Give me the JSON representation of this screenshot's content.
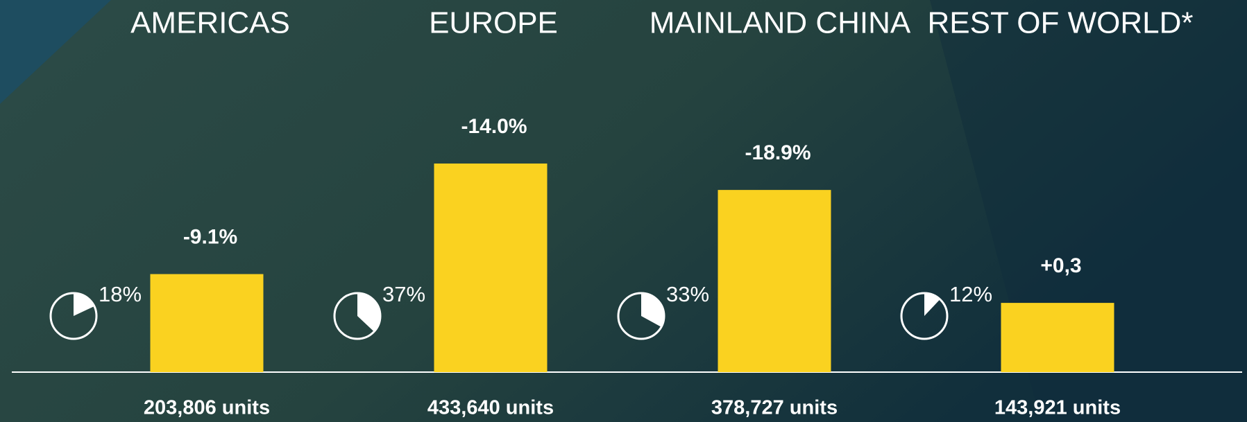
{
  "chart_data": {
    "type": "bar",
    "categories": [
      "AMERICAS",
      "EUROPE",
      "MAINLAND CHINA",
      "REST OF WORLD*"
    ],
    "values": [
      203806,
      433640,
      378727,
      143921
    ],
    "value_labels": [
      "203,806 units",
      "433,640 units",
      "378,727 units",
      "143,921 units"
    ],
    "changes": [
      -9.1,
      -14.0,
      -18.9,
      0.3
    ],
    "change_labels": [
      "-9.1%",
      "-14.0%",
      "-18.9%",
      "+0,3"
    ],
    "shares": [
      18,
      37,
      33,
      12
    ],
    "share_labels": [
      "18%",
      "37%",
      "33%",
      "12%"
    ],
    "color": "#fad220"
  }
}
